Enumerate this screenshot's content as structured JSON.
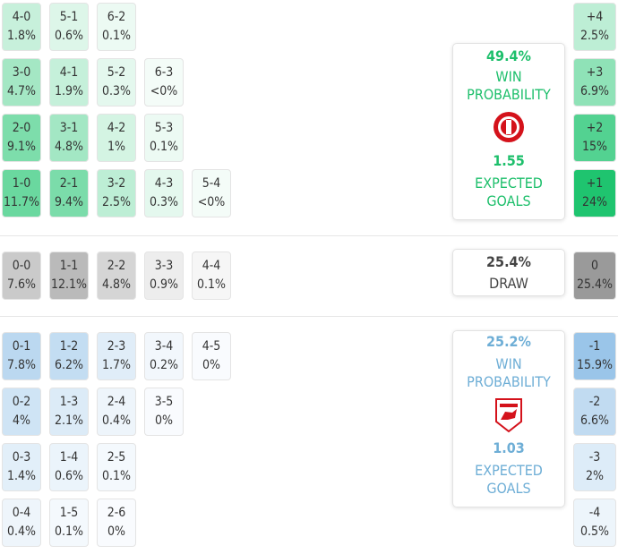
{
  "home": {
    "color": "#1fc46f",
    "rows": [
      [
        {
          "score": "4-0",
          "prob": "1.8%"
        },
        {
          "score": "5-1",
          "prob": "0.6%"
        },
        {
          "score": "6-2",
          "prob": "0.1%"
        }
      ],
      [
        {
          "score": "3-0",
          "prob": "4.7%"
        },
        {
          "score": "4-1",
          "prob": "1.9%"
        },
        {
          "score": "5-2",
          "prob": "0.3%"
        },
        {
          "score": "6-3",
          "prob": "<0%"
        }
      ],
      [
        {
          "score": "2-0",
          "prob": "9.1%"
        },
        {
          "score": "3-1",
          "prob": "4.8%"
        },
        {
          "score": "4-2",
          "prob": "1%"
        },
        {
          "score": "5-3",
          "prob": "0.1%"
        }
      ],
      [
        {
          "score": "1-0",
          "prob": "11.7%"
        },
        {
          "score": "2-1",
          "prob": "9.4%"
        },
        {
          "score": "3-2",
          "prob": "2.5%"
        },
        {
          "score": "4-3",
          "prob": "0.3%"
        },
        {
          "score": "5-4",
          "prob": "<0%"
        }
      ]
    ],
    "margins": [
      {
        "score": "+4",
        "prob": "2.5%"
      },
      {
        "score": "+3",
        "prob": "6.9%"
      },
      {
        "score": "+2",
        "prob": "15%"
      },
      {
        "score": "+1",
        "prob": "24%"
      }
    ],
    "summary": {
      "win_prob": "49.4%",
      "win_label": "WIN PROBABILITY",
      "xg": "1.55",
      "xg_label": "EXPECTED GOALS"
    }
  },
  "draw": {
    "color": "#9a9a9a",
    "rows": [
      [
        {
          "score": "0-0",
          "prob": "7.6%"
        },
        {
          "score": "1-1",
          "prob": "12.1%"
        },
        {
          "score": "2-2",
          "prob": "4.8%"
        },
        {
          "score": "3-3",
          "prob": "0.9%"
        },
        {
          "score": "4-4",
          "prob": "0.1%"
        }
      ]
    ],
    "margins": [
      {
        "score": "0",
        "prob": "25.4%"
      }
    ],
    "summary": {
      "prob": "25.4%",
      "label": "DRAW"
    }
  },
  "away": {
    "color": "#7fb6e3",
    "rows": [
      [
        {
          "score": "0-1",
          "prob": "7.8%"
        },
        {
          "score": "1-2",
          "prob": "6.2%"
        },
        {
          "score": "2-3",
          "prob": "1.7%"
        },
        {
          "score": "3-4",
          "prob": "0.2%"
        },
        {
          "score": "4-5",
          "prob": "0%"
        }
      ],
      [
        {
          "score": "0-2",
          "prob": "4%"
        },
        {
          "score": "1-3",
          "prob": "2.1%"
        },
        {
          "score": "2-4",
          "prob": "0.4%"
        },
        {
          "score": "3-5",
          "prob": "0%"
        }
      ],
      [
        {
          "score": "0-3",
          "prob": "1.4%"
        },
        {
          "score": "1-4",
          "prob": "0.6%"
        },
        {
          "score": "2-5",
          "prob": "0.1%"
        }
      ],
      [
        {
          "score": "0-4",
          "prob": "0.4%"
        },
        {
          "score": "1-5",
          "prob": "0.1%"
        },
        {
          "score": "2-6",
          "prob": "0%"
        }
      ]
    ],
    "margins": [
      {
        "score": "-1",
        "prob": "15.9%"
      },
      {
        "score": "-2",
        "prob": "6.6%"
      },
      {
        "score": "-3",
        "prob": "2%"
      },
      {
        "score": "-4",
        "prob": "0.5%"
      }
    ],
    "summary": {
      "win_prob": "25.2%",
      "win_label": "WIN PROBABILITY",
      "xg": "1.03",
      "xg_label": "EXPECTED GOALS"
    }
  }
}
